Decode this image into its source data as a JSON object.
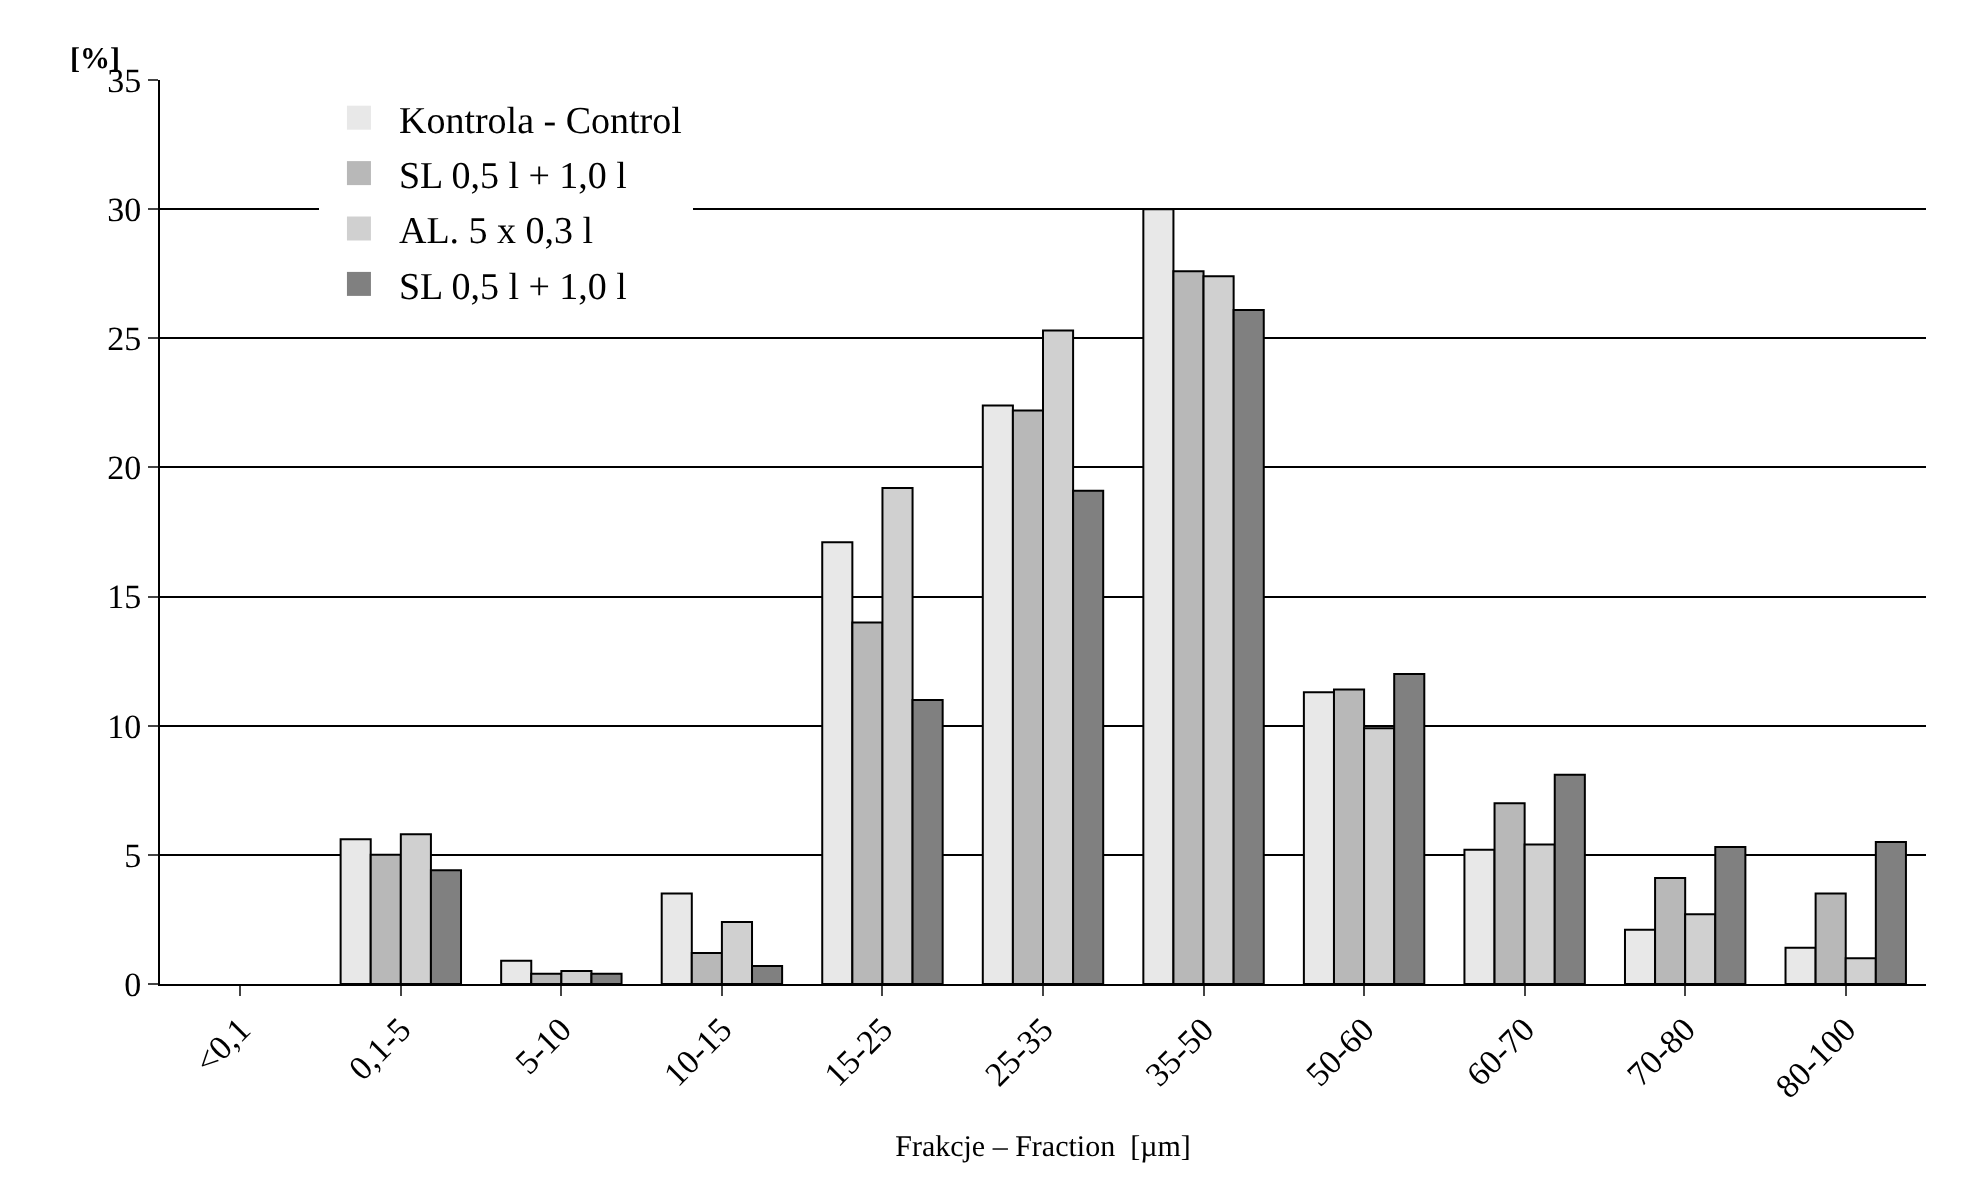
{
  "chart_data": {
    "type": "bar",
    "ylabel": "[%]",
    "xlabel": "Frakcje – Fraction  [µm]",
    "categories": [
      "<0,1",
      "0,1-5",
      "5-10",
      "10-15",
      "15-25",
      "25-35",
      "35-50",
      "50-60",
      "60-70",
      "70-80",
      "80-100"
    ],
    "series": [
      {
        "name": "Kontrola - Control",
        "color": "#e8e8e8",
        "values": [
          0,
          5.6,
          0.9,
          3.5,
          17.1,
          22.4,
          30,
          11.3,
          5.2,
          2.1,
          1.4
        ]
      },
      {
        "name": "SL 0,5 l + 1,0 l",
        "color": "#b8b8b8",
        "values": [
          0,
          5.0,
          0.4,
          1.2,
          14,
          22.2,
          27.6,
          11.4,
          7.0,
          4.1,
          3.5
        ]
      },
      {
        "name": "AL. 5 x 0,3 l",
        "color": "#d0d0d0",
        "values": [
          0,
          5.8,
          0.5,
          2.4,
          19.2,
          25.3,
          27.4,
          9.9,
          5.4,
          2.7,
          1.0
        ]
      },
      {
        "name": "SL 0,5 l + 1,0 l",
        "color": "#808080",
        "values": [
          0,
          4.4,
          0.4,
          0.7,
          11.0,
          19.1,
          26.1,
          12.0,
          8.1,
          5.3,
          5.5
        ]
      }
    ],
    "ylim": [
      0,
      35
    ],
    "yticks": [
      0,
      5,
      10,
      15,
      20,
      25,
      30,
      35
    ],
    "grid": "y",
    "legend": "top left"
  }
}
